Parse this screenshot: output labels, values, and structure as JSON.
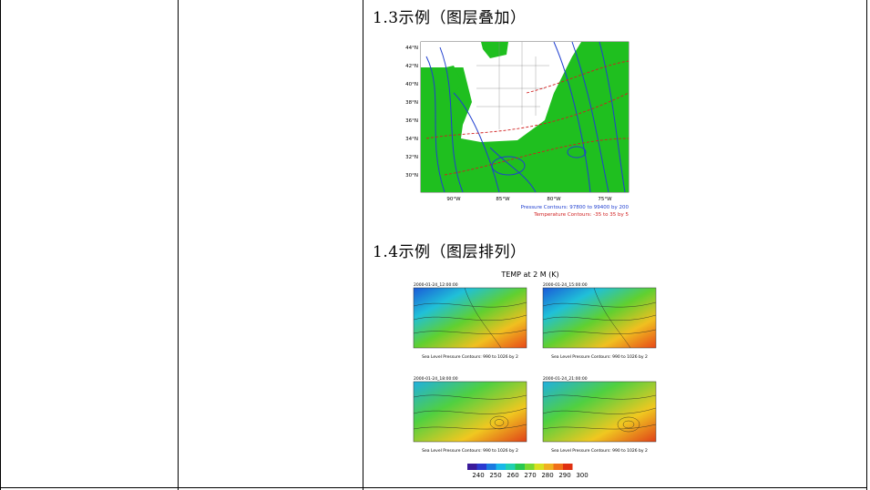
{
  "section_1_3": {
    "heading": "1.3示例（图层叠加）",
    "figure": {
      "lat_labels": [
        "44°N",
        "42°N",
        "40°N",
        "38°N",
        "36°N",
        "34°N",
        "32°N",
        "30°N"
      ],
      "lon_labels": [
        "90°W",
        "85°W",
        "80°W",
        "75°W"
      ],
      "caption_pressure": "Pressure Contours: 97800 to 99400 by 200",
      "caption_temperature": "Temperature Contours: -35 to 35 by 5",
      "colors": {
        "land": "#1fbf1f",
        "pressure": "#1f3fd0",
        "temperature": "#d02020"
      }
    }
  },
  "section_1_4": {
    "heading": "1.4示例（图层排列）",
    "figure": {
      "title": "TEMP at 2 M (K)",
      "panels": [
        {
          "time": "2000-01-24_12:00:00",
          "caption": "Sea Level Pressure Contours: 990 to 1026 by 2"
        },
        {
          "time": "2000-01-24_15:00:00",
          "caption": "Sea Level Pressure Contours: 990 to 1026 by 2"
        },
        {
          "time": "2000-01-24_18:00:00",
          "caption": "Sea Level Pressure Contours: 990 to 1026 by 2"
        },
        {
          "time": "2000-01-24_21:00:00",
          "caption": "Sea Level Pressure Contours: 990 to 1026 by 2"
        }
      ],
      "colorbar_labels": [
        "240",
        "250",
        "260",
        "270",
        "280",
        "290",
        "300"
      ],
      "colorbar_colors": [
        "#3a1a9a",
        "#2a3ad0",
        "#1a7ae0",
        "#18b8e8",
        "#20d0b0",
        "#28c850",
        "#7ad830",
        "#d8e020",
        "#f0b020",
        "#f07018",
        "#e03010"
      ]
    }
  }
}
